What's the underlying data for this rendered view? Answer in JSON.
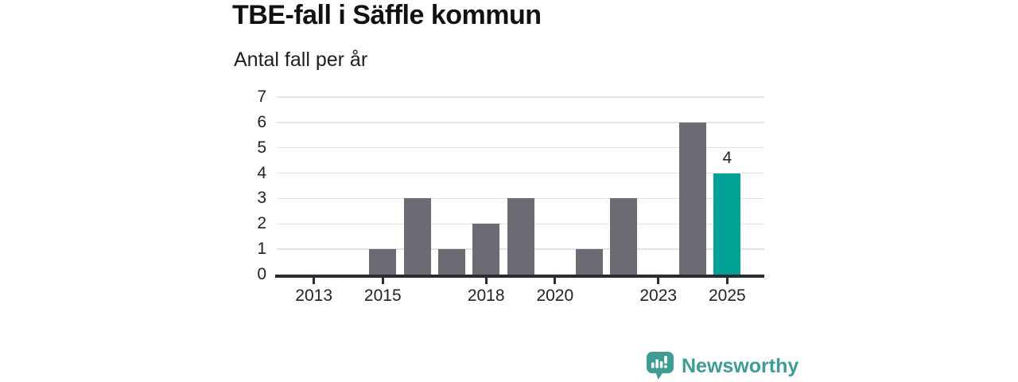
{
  "chart_data": {
    "type": "bar",
    "title": "TBE-fall i Säffle kommun",
    "subtitle": "Antal fall per år",
    "categories": [
      "2013",
      "2014",
      "2015",
      "2016",
      "2017",
      "2018",
      "2019",
      "2020",
      "2021",
      "2022",
      "2023",
      "2024",
      "2025"
    ],
    "values": [
      0,
      0,
      1,
      3,
      1,
      2,
      3,
      0,
      1,
      3,
      0,
      6,
      4
    ],
    "ylim": [
      0,
      7
    ],
    "y_ticks": [
      0,
      1,
      2,
      3,
      4,
      5,
      6,
      7
    ],
    "x_tick_labels": [
      "2013",
      "2015",
      "2018",
      "2020",
      "2023",
      "2025"
    ],
    "grid": true,
    "legend": false,
    "highlight": {
      "category": "2025",
      "value": 4,
      "label": "4"
    },
    "colors": {
      "bar": "#6B6B74",
      "highlight": "#00A298",
      "grid": "#E3E3E3",
      "axis": "#2B2B33",
      "text": "#222228",
      "title": "#111111",
      "subtitle": "#1E1E1E"
    }
  },
  "footer": {
    "brand": "Newsworthy",
    "brand_color": "#3E9C94"
  }
}
